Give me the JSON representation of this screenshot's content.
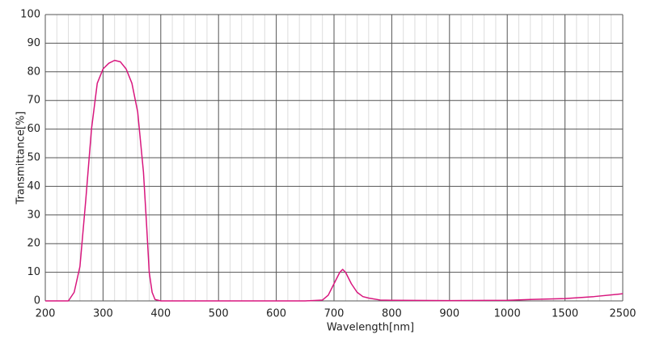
{
  "chart_data": {
    "type": "line",
    "xlabel": "Wavelength[nm]",
    "ylabel": "Transmittance[%]",
    "x": [
      200,
      220,
      240,
      250,
      260,
      270,
      280,
      290,
      300,
      310,
      320,
      330,
      340,
      350,
      360,
      370,
      375,
      380,
      385,
      390,
      400,
      500,
      600,
      650,
      680,
      690,
      700,
      710,
      715,
      720,
      730,
      740,
      750,
      760,
      780,
      800,
      900,
      1000,
      1200,
      1500,
      2000,
      2500
    ],
    "series": [
      {
        "color": "#d8177e",
        "values": [
          0,
          0,
          0,
          3,
          12,
          35,
          60,
          76,
          81,
          83,
          84,
          83.5,
          81,
          76,
          66,
          45,
          28,
          10,
          3,
          0.5,
          0,
          0,
          0,
          0,
          0.3,
          2,
          6,
          10,
          11,
          10,
          6,
          3,
          1.5,
          1,
          0.3,
          0.2,
          0.1,
          0.2,
          0.5,
          0.8,
          1.5,
          2.5
        ]
      }
    ],
    "xlim": [
      200,
      2500
    ],
    "xticks": [
      200,
      300,
      400,
      500,
      600,
      700,
      800,
      900,
      1000,
      1500,
      2500
    ],
    "xscale": "tick-spaced",
    "ylim": [
      0,
      100
    ],
    "yticks": [
      0,
      10,
      20,
      30,
      40,
      50,
      60,
      70,
      80,
      90,
      100
    ],
    "grid": true
  }
}
